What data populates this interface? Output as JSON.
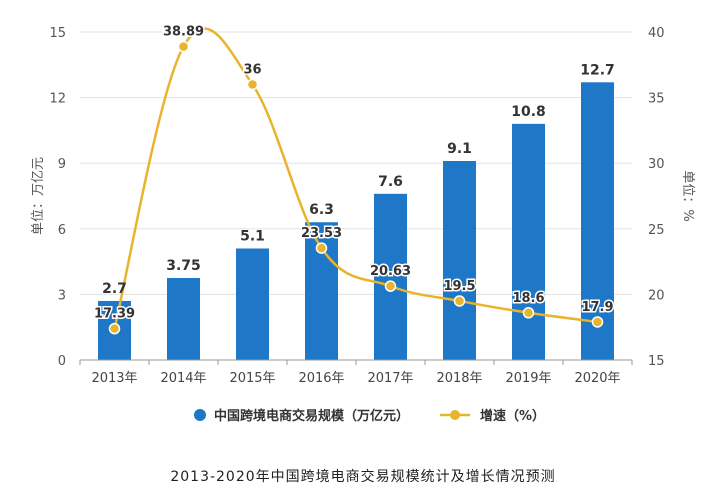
{
  "caption": "2013-2020年中国跨境电商交易规模统计及增长情况预测",
  "chart_data": {
    "type": "bar+line",
    "categories": [
      "2013年",
      "2014年",
      "2015年",
      "2016年",
      "2017年",
      "2018年",
      "2019年",
      "2020年"
    ],
    "series": [
      {
        "name": "中国跨境电商交易规模（万亿元）",
        "type": "bar",
        "axis": "left",
        "color": "#1f77c8",
        "values": [
          2.7,
          3.75,
          5.1,
          6.3,
          7.6,
          9.1,
          10.8,
          12.7
        ],
        "labels": [
          "2.7",
          "3.75",
          "5.1",
          "6.3",
          "7.6",
          "9.1",
          "10.8",
          "12.7"
        ]
      },
      {
        "name": "增速（%）",
        "type": "line",
        "axis": "right",
        "color": "#e8b42c",
        "values": [
          17.39,
          38.89,
          36,
          23.53,
          20.63,
          19.5,
          18.6,
          17.9
        ],
        "labels": [
          "17.39",
          "38.89",
          "36",
          "23.53",
          "20.63",
          "19.5",
          "18.6",
          "17.9"
        ]
      }
    ],
    "ylabel": "单位：万亿元",
    "y2label": "单位：%",
    "ylim": [
      0,
      15
    ],
    "yticks": [
      "0",
      "3",
      "6",
      "9",
      "12",
      "15"
    ],
    "y2lim": [
      15,
      40
    ],
    "y2ticks": [
      "15",
      "20",
      "25",
      "30",
      "35",
      "40"
    ],
    "grid": true,
    "legend_position": "bottom"
  }
}
